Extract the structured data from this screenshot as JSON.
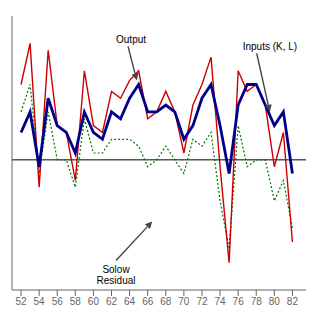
{
  "chart_data": {
    "type": "line",
    "x": [
      52,
      53,
      54,
      55,
      56,
      57,
      58,
      59,
      60,
      61,
      62,
      63,
      64,
      65,
      66,
      67,
      68,
      69,
      70,
      71,
      72,
      73,
      74,
      75,
      76,
      77,
      78,
      79,
      80,
      81,
      82
    ],
    "series": [
      {
        "name": "Solow\nResidual",
        "color": "#007700",
        "line_style": "dotted",
        "values": [
          3.5,
          5.5,
          -1.0,
          3.5,
          0.0,
          0.0,
          -2.0,
          3.0,
          0.5,
          0.5,
          1.5,
          1.5,
          1.5,
          1.0,
          -0.5,
          0.0,
          1.0,
          0.0,
          -1.0,
          1.5,
          1.0,
          2.0,
          -3.0,
          -6.5,
          2.5,
          -0.5,
          0.0,
          0.0,
          -3.0,
          -1.5,
          -5.0
        ]
      },
      {
        "name": "Output",
        "color": "#cc0000",
        "line_style": "solid",
        "values": [
          5.5,
          8.5,
          -2.0,
          8.0,
          2.5,
          2.0,
          -1.5,
          6.5,
          2.5,
          2.0,
          5.0,
          4.5,
          5.8,
          6.5,
          3.0,
          3.5,
          5.0,
          3.5,
          0.5,
          4.0,
          5.5,
          7.5,
          -0.5,
          -7.5,
          6.5,
          5.0,
          5.5,
          4.0,
          -0.5,
          2.0,
          -6.0
        ]
      },
      {
        "name": "Inputs (K, L)",
        "color": "#00008B",
        "line_style": "solid",
        "values": [
          2.0,
          3.5,
          -0.5,
          4.5,
          2.5,
          2.0,
          0.5,
          3.5,
          2.0,
          1.5,
          3.5,
          3.0,
          4.5,
          5.5,
          3.5,
          3.5,
          4.0,
          3.5,
          1.5,
          2.5,
          4.5,
          5.5,
          2.5,
          -1.0,
          4.0,
          5.5,
          5.5,
          4.0,
          2.5,
          3.5,
          -1.0
        ]
      }
    ],
    "xlim": [
      51.0,
      83.5
    ],
    "ylim": [
      -9.5,
      10.5
    ],
    "xticks": [
      52,
      54,
      56,
      58,
      60,
      62,
      64,
      66,
      68,
      70,
      72,
      74,
      76,
      78,
      80,
      82
    ],
    "tick_labels": "x",
    "grid": false,
    "hlines": [
      0
    ],
    "annotations": [
      {
        "text": "Output",
        "xy": [
          64.8,
          5.8
        ],
        "xytext": [
          62.5,
          8.5
        ]
      },
      {
        "text": "Solow\nResidual",
        "xy": [
          66.5,
          -4.5
        ],
        "xytext": [
          62.5,
          -7.5
        ]
      },
      {
        "text": "Inputs (K, L)",
        "xy": [
          79.5,
          3.5
        ],
        "xytext": [
          76.5,
          8.0
        ]
      }
    ]
  }
}
